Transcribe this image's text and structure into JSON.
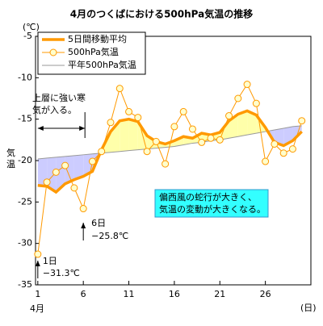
{
  "chart_data": {
    "type": "line",
    "title": "4月のつくばにおける500hPa気温の推移",
    "y_unit": "(℃)",
    "y_label": "気温",
    "x_unit": "(日)",
    "x_month": "4月",
    "x": [
      1,
      2,
      3,
      4,
      5,
      6,
      7,
      8,
      9,
      10,
      11,
      12,
      13,
      14,
      15,
      16,
      17,
      18,
      19,
      20,
      21,
      22,
      23,
      24,
      25,
      26,
      27,
      28,
      29,
      30
    ],
    "series": [
      {
        "name": "5日間移動平均",
        "color": "#ff9900",
        "values": [
          -23.0,
          -23.1,
          -23.8,
          -22.8,
          -22.3,
          -21.9,
          -21.3,
          -18.7,
          -16.5,
          -15.2,
          -15.0,
          -15.3,
          -17.0,
          -17.7,
          -18.0,
          -17.6,
          -17.1,
          -17.3,
          -16.7,
          -16.9,
          -16.6,
          -15.2,
          -14.4,
          -14.0,
          -14.5,
          -16.0,
          -17.8,
          -18.2,
          -17.6,
          -16.5
        ]
      },
      {
        "name": "500hPa気温",
        "color": "#ff9900",
        "values": [
          -31.3,
          -22.6,
          -21.4,
          -20.6,
          -23.3,
          -25.8,
          -20.1,
          -18.9,
          -15.4,
          -11.3,
          -14.1,
          -14.8,
          -18.9,
          -17.7,
          -20.4,
          -15.9,
          -14.1,
          -16.2,
          -17.8,
          -17.3,
          -17.5,
          -14.6,
          -12.5,
          -10.8,
          -13.1,
          -20.1,
          -18.0,
          -19.1,
          -18.6,
          -15.2
        ]
      },
      {
        "name": "平年500hPa気温",
        "color": "#999999",
        "values": [
          -19.8,
          -19.7,
          -19.6,
          -19.5,
          -19.4,
          -19.3,
          -19.2,
          -19.1,
          -19.0,
          -18.9,
          -18.8,
          -18.7,
          -18.6,
          -18.5,
          -18.4,
          -18.3,
          -18.1,
          -17.9,
          -17.8,
          -17.6,
          -17.5,
          -17.3,
          -17.1,
          -16.9,
          -16.7,
          -16.5,
          -16.3,
          -16.1,
          -15.9,
          -15.8
        ]
      }
    ],
    "above_color": "#ffffaa",
    "below_color": "#ccccff",
    "xlim": [
      0.75,
      31
    ],
    "xticks": [
      1,
      6,
      11,
      16,
      21,
      26
    ],
    "ylim": [
      -35,
      -5
    ],
    "yticks": [
      -35,
      -30,
      -25,
      -20,
      -15,
      -10,
      -5
    ],
    "annotations": {
      "cold": [
        "上層に強い寒",
        "気が入る。"
      ],
      "jet": [
        "偏西風の蛇行が大きく、",
        "気温の変動が大きくなる。"
      ],
      "day6": [
        "6日",
        "−25.8℃"
      ],
      "day1": [
        "1日",
        "−31.3℃"
      ]
    }
  }
}
